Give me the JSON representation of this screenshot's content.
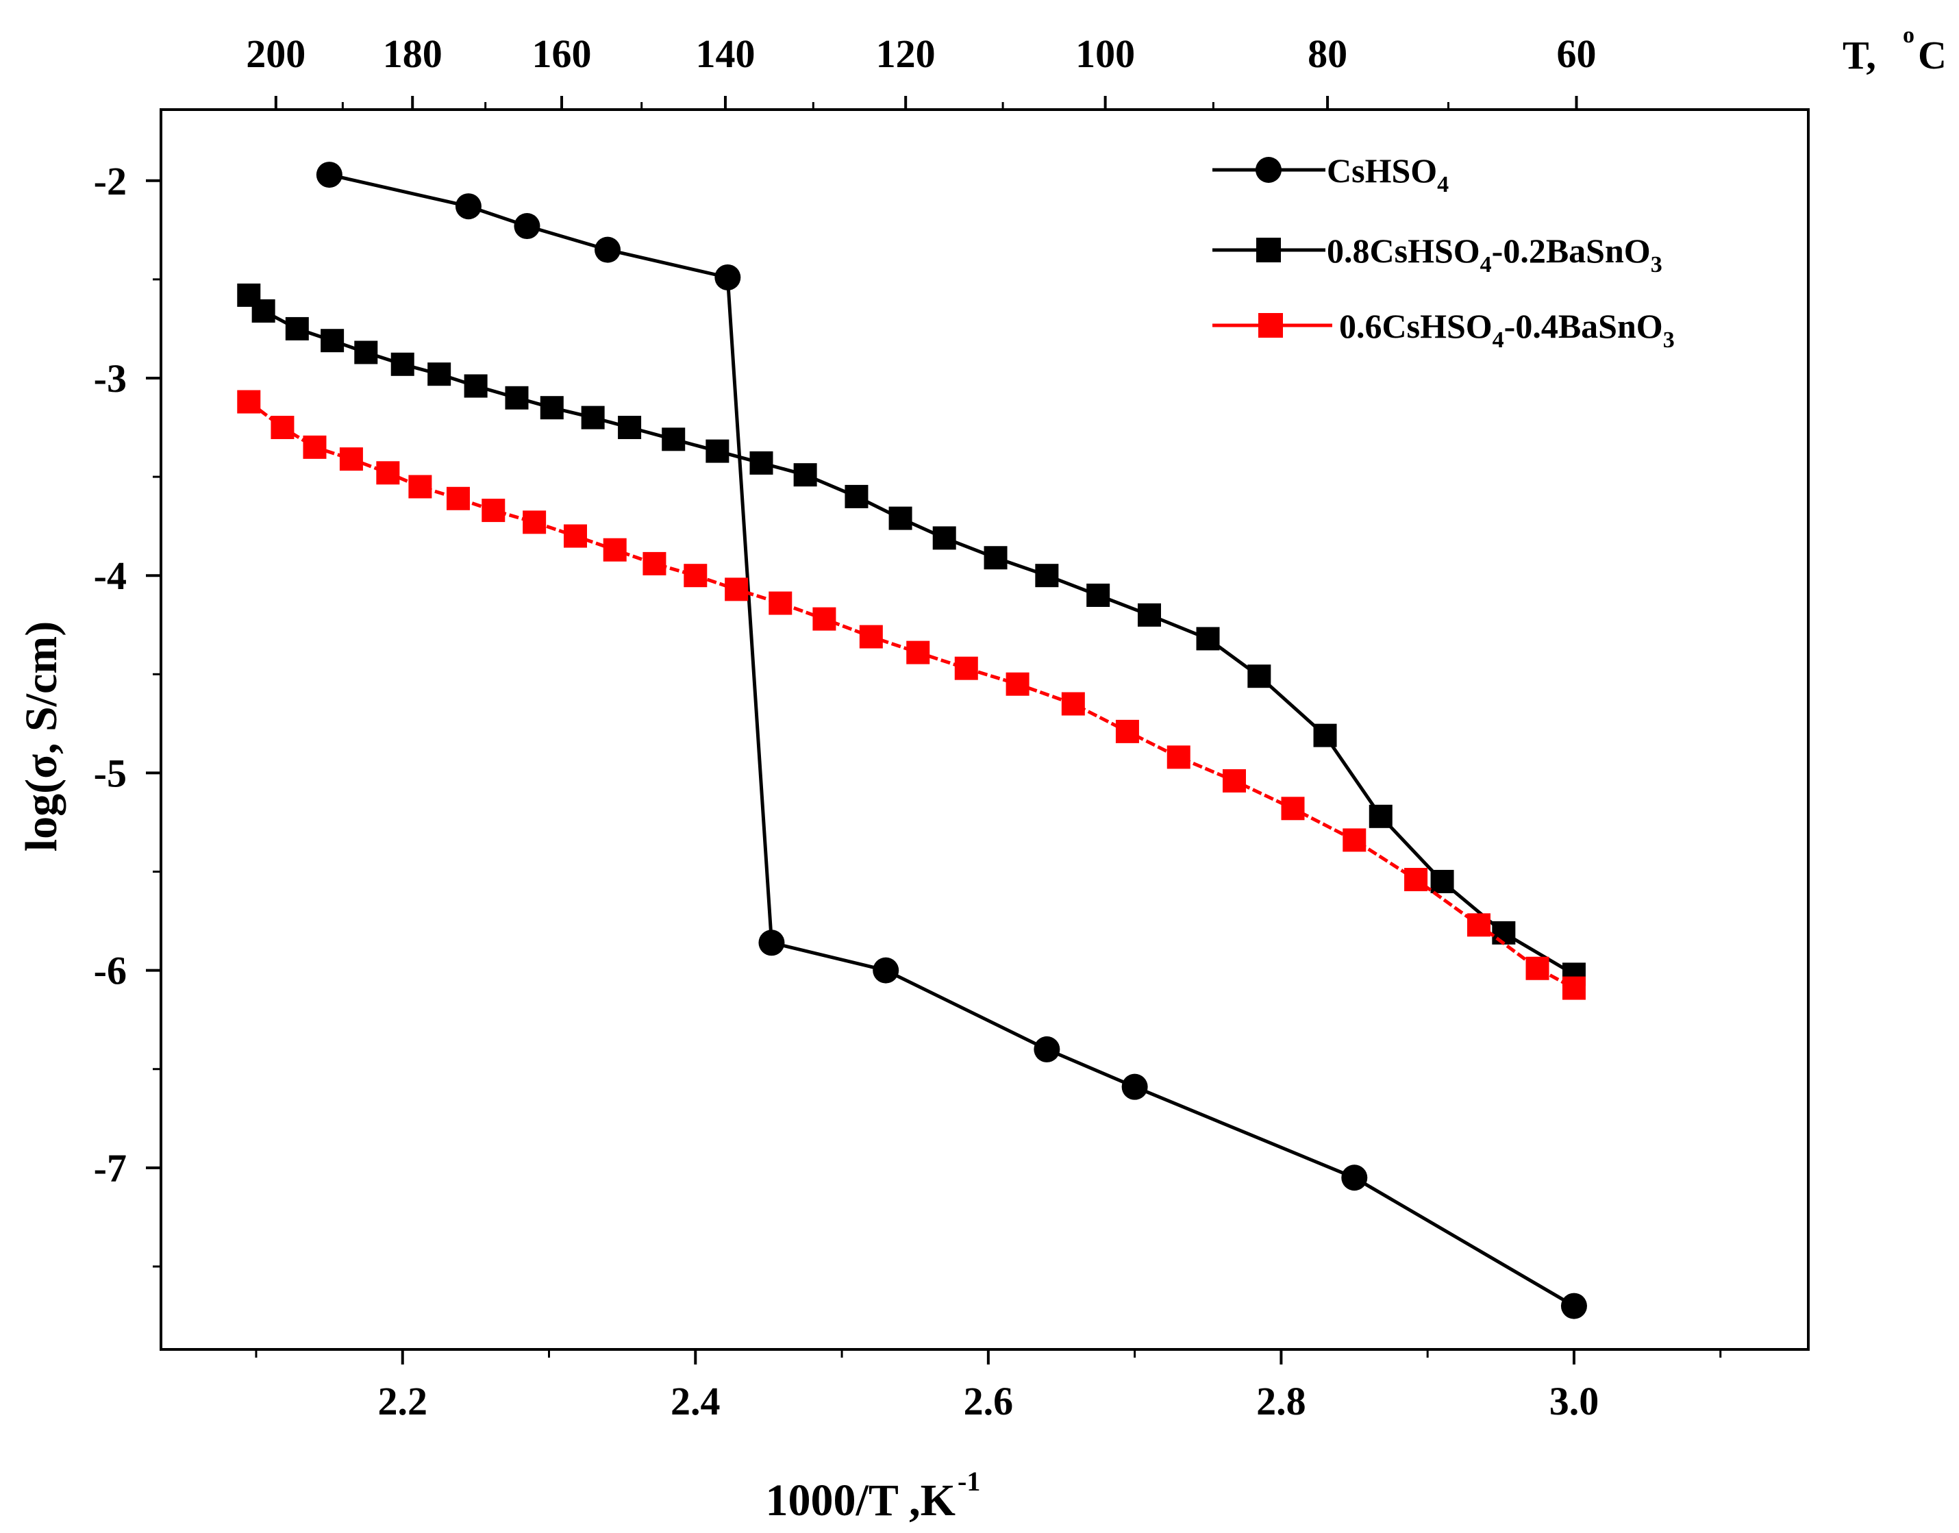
{
  "chart_data": {
    "type": "line",
    "title": "",
    "xlabel": "1000/T ,K",
    "xlabel_sup": "-1",
    "ylabel": "log(σ, S/cm)",
    "top_axis_label": "T,",
    "top_axis_label_sup": "o",
    "top_axis_label_unit": "C",
    "xlim": [
      2.035,
      3.16
    ],
    "ylim": [
      -7.92,
      -1.64
    ],
    "x_ticks": [
      2.2,
      2.4,
      2.6,
      2.8,
      3.0
    ],
    "x_tick_labels": [
      "2.2",
      "2.4",
      "2.6",
      "2.8",
      "3.0"
    ],
    "y_ticks": [
      -2,
      -3,
      -4,
      -5,
      -6,
      -7
    ],
    "y_tick_labels": [
      "-2",
      "-3",
      "-4",
      "-5",
      "-6",
      "-7"
    ],
    "top_ticks_celsius": [
      200,
      180,
      160,
      140,
      120,
      100,
      80,
      60
    ],
    "top_tick_labels": [
      "200",
      "180",
      "160",
      "140",
      "120",
      "100",
      "80",
      "60"
    ],
    "grid": false,
    "legend_position": "top-right",
    "series": [
      {
        "name": "CsHSO",
        "name_sub": "4",
        "color": "#000000",
        "marker": "circle",
        "x": [
          2.15,
          2.245,
          2.285,
          2.34,
          2.422,
          2.452,
          2.53,
          2.64,
          2.7,
          2.85,
          3.0
        ],
        "y": [
          -1.97,
          -2.13,
          -2.23,
          -2.35,
          -2.49,
          -5.86,
          -6.0,
          -6.4,
          -6.59,
          -7.05,
          -7.7
        ]
      },
      {
        "name": "0.8CsHSO",
        "name_sub": "4",
        "name_rest": "-0.2BaSnO",
        "name_rest_sub": "3",
        "color": "#000000",
        "marker": "square",
        "x": [
          2.095,
          2.105,
          2.128,
          2.152,
          2.175,
          2.2,
          2.225,
          2.25,
          2.278,
          2.302,
          2.33,
          2.355,
          2.385,
          2.415,
          2.445,
          2.475,
          2.51,
          2.54,
          2.57,
          2.605,
          2.64,
          2.675,
          2.71,
          2.75,
          2.785,
          2.83,
          2.868,
          2.91,
          2.952,
          3.0
        ],
        "y": [
          -2.58,
          -2.66,
          -2.75,
          -2.81,
          -2.87,
          -2.93,
          -2.98,
          -3.04,
          -3.1,
          -3.15,
          -3.2,
          -3.25,
          -3.31,
          -3.37,
          -3.43,
          -3.49,
          -3.6,
          -3.71,
          -3.81,
          -3.91,
          -4.0,
          -4.1,
          -4.2,
          -4.32,
          -4.51,
          -4.81,
          -5.22,
          -5.55,
          -5.81,
          -6.02
        ]
      },
      {
        "name": "0.6CsHSO",
        "name_sub": "4",
        "name_rest": "-0.4BaSnO",
        "name_rest_sub": "3",
        "color": "#ff0000",
        "marker": "square",
        "x": [
          2.095,
          2.118,
          2.14,
          2.165,
          2.19,
          2.212,
          2.238,
          2.262,
          2.29,
          2.318,
          2.345,
          2.372,
          2.4,
          2.428,
          2.458,
          2.488,
          2.52,
          2.552,
          2.585,
          2.62,
          2.658,
          2.695,
          2.73,
          2.768,
          2.808,
          2.85,
          2.892,
          2.935,
          2.975,
          3.0
        ],
        "y": [
          -3.12,
          -3.25,
          -3.35,
          -3.41,
          -3.48,
          -3.55,
          -3.61,
          -3.67,
          -3.73,
          -3.8,
          -3.87,
          -3.94,
          -4.0,
          -4.07,
          -4.14,
          -4.22,
          -4.31,
          -4.39,
          -4.47,
          -4.55,
          -4.65,
          -4.79,
          -4.92,
          -5.04,
          -5.18,
          -5.34,
          -5.54,
          -5.77,
          -5.99,
          -6.09
        ]
      }
    ]
  }
}
